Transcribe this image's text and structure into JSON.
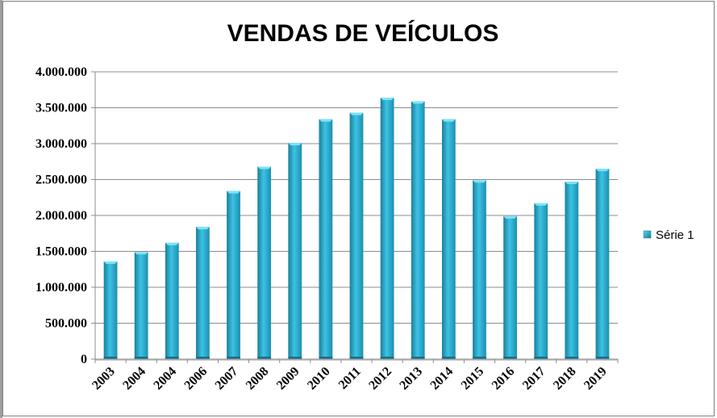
{
  "chart_data": {
    "type": "bar",
    "title": "VENDAS DE VEÍCULOS",
    "categories": [
      "2003",
      "2004",
      "2004",
      "2006",
      "2007",
      "2008",
      "2009",
      "2010",
      "2011",
      "2012",
      "2013",
      "2014",
      "2015",
      "2016",
      "2017",
      "2018",
      "2019"
    ],
    "series": [
      {
        "name": "Série 1",
        "values": [
          1360000,
          1490000,
          1620000,
          1840000,
          2340000,
          2680000,
          3010000,
          3340000,
          3430000,
          3640000,
          3590000,
          3340000,
          2490000,
          1990000,
          2170000,
          2470000,
          2650000
        ],
        "color": "#2eaed0"
      }
    ],
    "ylim": [
      0,
      4000000
    ],
    "yticks": [
      0,
      500000,
      1000000,
      1500000,
      2000000,
      2500000,
      3000000,
      3500000,
      4000000
    ],
    "ytick_labels": [
      "0",
      "500.000",
      "1.000.000",
      "1.500.000",
      "2.000.000",
      "2.500.000",
      "3.000.000",
      "3.500.000",
      "4.000.000"
    ],
    "grid": true,
    "legend_position": "right"
  }
}
